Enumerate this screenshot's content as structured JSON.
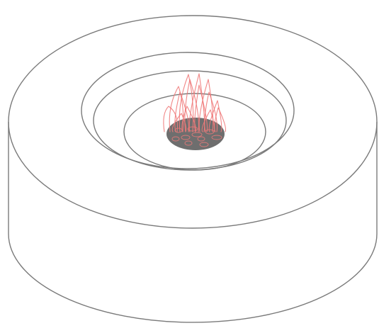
{
  "diagram": {
    "subject": "fire-pit-with-flames",
    "colors": {
      "outline": "#7a7a7a",
      "flame": "#f07a7a",
      "coals": "#6e6e6e",
      "background": "#ffffff"
    },
    "parts": [
      "outer-rim",
      "outer-wall",
      "inner-step",
      "inner-bowl",
      "coal-bed",
      "flames"
    ]
  }
}
